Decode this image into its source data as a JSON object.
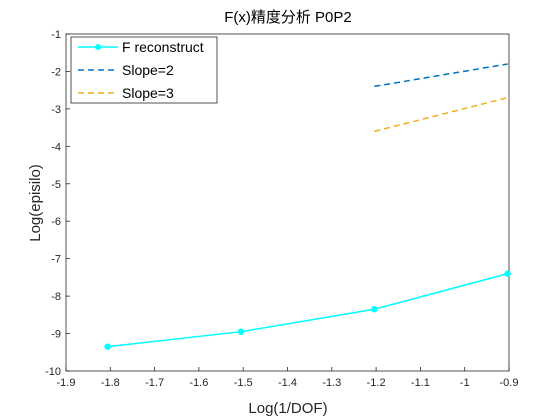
{
  "chart_data": {
    "type": "line",
    "title": "F(x)精度分析 P0P2",
    "xlabel": "Log(1/DOF)",
    "ylabel": "Log(episilo)",
    "xlim": [
      -1.9,
      -0.9
    ],
    "ylim": [
      -10,
      -1
    ],
    "xticks": [
      "-1.9",
      "-1.8",
      "-1.7",
      "-1.6",
      "-1.5",
      "-1.4",
      "-1.3",
      "-1.2",
      "-1.1",
      "-1",
      "-0.9"
    ],
    "yticks": [
      "-10",
      "-9",
      "-8",
      "-7",
      "-6",
      "-5",
      "-4",
      "-3",
      "-2",
      "-1"
    ],
    "grid": false,
    "legend_position": "top-left",
    "series": [
      {
        "name": "F reconstruct",
        "style": "solid-marker",
        "color": "#00FFFF",
        "x": [
          -1.806,
          -1.505,
          -1.204,
          -0.903
        ],
        "y": [
          -9.35,
          -8.95,
          -8.35,
          -7.4
        ]
      },
      {
        "name": "Slope=2",
        "style": "dashed",
        "color": "#0072BD",
        "x": [
          -1.204,
          -0.903
        ],
        "y": [
          -2.4,
          -1.8
        ]
      },
      {
        "name": "Slope=3",
        "style": "dashed",
        "color": "#EDB120",
        "x": [
          -1.204,
          -0.903
        ],
        "y": [
          -3.6,
          -2.7
        ]
      }
    ]
  }
}
